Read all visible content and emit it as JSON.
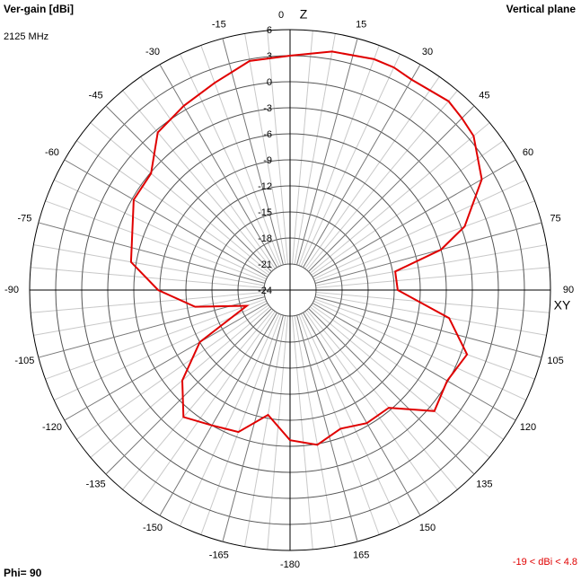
{
  "chart_data": {
    "type": "polar",
    "title": "Vertical plane",
    "axis_label": "Ver-gain [dBi]",
    "subtitle": "2125 MHz",
    "z_label": "Z",
    "xy_label": "XY",
    "phi_label": "Phi= 90",
    "range_label": "-19 < dBi < 4.8",
    "rlim": [
      -24,
      6
    ],
    "rticks": [
      -24,
      -21,
      -18,
      -15,
      -12,
      -9,
      -6,
      -3,
      0,
      3,
      6
    ],
    "thetaticks": [
      0,
      15,
      30,
      45,
      60,
      75,
      90,
      105,
      120,
      135,
      150,
      165,
      -180,
      -165,
      -150,
      -135,
      -120,
      -105,
      -90,
      -75,
      -60,
      -45,
      -30,
      -15
    ],
    "series": [
      {
        "color": "#e00000",
        "theta": [
          0,
          10,
          20,
          25,
          30,
          40,
          45,
          50,
          60,
          70,
          75,
          80,
          90,
          100,
          110,
          120,
          130,
          140,
          150,
          160,
          170,
          180,
          -170,
          -160,
          -150,
          -140,
          -130,
          -120,
          -110,
          -100,
          -90,
          -80,
          -60,
          -50,
          -40,
          -30,
          -20,
          -10
        ],
        "values": [
          3.0,
          3.9,
          4.3,
          4.3,
          4.0,
          4.4,
          4.0,
          3.6,
          1.5,
          -2.6,
          -6.0,
          -11.7,
          -11.6,
          -5.4,
          -2.3,
          -3.1,
          -2.3,
          -6.3,
          -6.3,
          -7.0,
          -5.9,
          -6.7,
          -9.4,
          -6.6,
          -6.0,
          -4.9,
          -7.8,
          -12.0,
          -18.7,
          -12.9,
          -8.8,
          -5.4,
          -3.2,
          -3.1,
          -0.3,
          0.5,
          1.4,
          2.8
        ]
      }
    ]
  }
}
